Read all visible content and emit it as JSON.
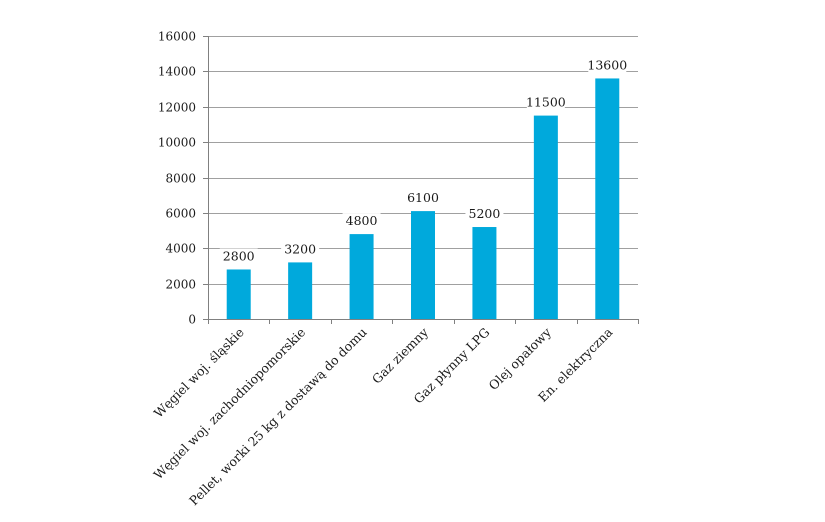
{
  "chart_data": {
    "type": "bar",
    "categories": [
      "Węgiel woj. śląskie",
      "Węgiel woj. zachodniopomorskie",
      "Pellet, worki 25 kg z dostawą do domu",
      "Gaz ziemny",
      "Gaz płynny LPG",
      "Olej opałowy",
      "En. elektryczna"
    ],
    "values": [
      2800,
      3200,
      4800,
      6100,
      5200,
      11500,
      13600
    ],
    "ylim": [
      0,
      16000
    ],
    "yticks": [
      0,
      2000,
      4000,
      6000,
      8000,
      10000,
      12000,
      14000,
      16000
    ],
    "grid": true,
    "legend": "none",
    "title": "",
    "xlabel": "",
    "ylabel": "",
    "bar_color": "#00a9dc",
    "grid_color": "#a0a0a0",
    "axis_color": "#808080"
  }
}
